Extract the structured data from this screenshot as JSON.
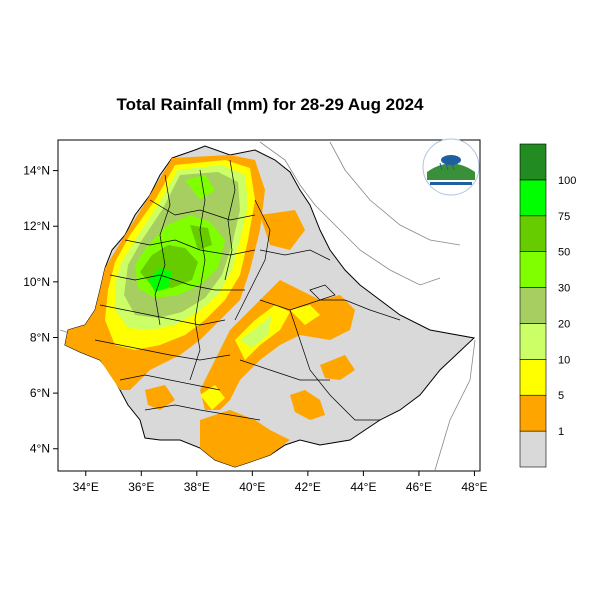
{
  "title": "Total Rainfall (mm) for 28-29 Aug 2024",
  "map": {
    "lon_range": [
      33,
      48.2
    ],
    "lat_range": [
      3.2,
      15.1
    ],
    "x_ticks": [
      "34°E",
      "36°E",
      "38°E",
      "40°E",
      "42°E",
      "44°E",
      "46°E",
      "48°E"
    ],
    "y_ticks": [
      "14°N",
      "12°N",
      "10°N",
      "8°N",
      "6°N",
      "4°N"
    ]
  },
  "legend": {
    "labels": [
      "1",
      "5",
      "10",
      "20",
      "30",
      "50",
      "75",
      "100"
    ],
    "colors": [
      "#d9d9d9",
      "#ffa500",
      "#ffff00",
      "#ccff66",
      "#a6ce61",
      "#80ff00",
      "#66cc00",
      "#00ff00",
      "#228b22"
    ]
  },
  "logo": {
    "text": "Ethiopian Meteorology Institute"
  }
}
